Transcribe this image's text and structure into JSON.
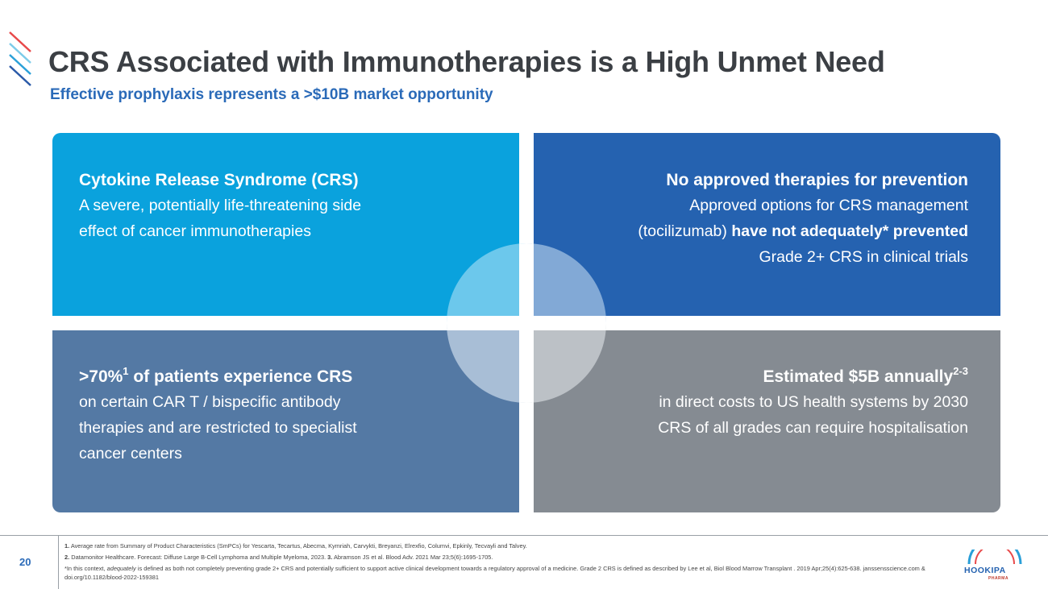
{
  "header": {
    "title": "CRS Associated with Immunotherapies is a High Unmet Need",
    "subtitle": "Effective prophylaxis represents a >$10B market opportunity"
  },
  "quadrants": {
    "top_left": {
      "heading": "Cytokine Release Syndrome (CRS)",
      "lines": [
        "A severe, potentially life-threatening side",
        "effect of cancer immunotherapies"
      ]
    },
    "top_right": {
      "heading": "No approved therapies for prevention",
      "line1": "Approved options for CRS management",
      "line2_prefix": "(tocilizumab) ",
      "line2_bold": "have not adequately* prevented",
      "line3": "Grade 2+ CRS in clinical trials"
    },
    "bottom_left": {
      "heading_main": ">70%",
      "heading_sup": "1",
      "heading_rest": " of patients experience CRS",
      "lines": [
        "on certain CAR T / bispecific antibody",
        "therapies and are restricted to specialist",
        "cancer centers"
      ]
    },
    "bottom_right": {
      "heading_main": "Estimated $5B annually",
      "heading_sup": "2-3",
      "lines": [
        "in direct costs to US health systems by 2030",
        "CRS of all grades can require hospitalisation"
      ]
    }
  },
  "footer": {
    "page_number": "20",
    "ref1_num": "1.",
    "ref1_text": " Average rate from Summary of Product Characteristics (SmPCs) for Yescarta, Tecartus, Abecma, Kymriah, Carvykti, Breyanzi, Elrexfio, Columvi, Epkinly, Tecvayli and Talvey.",
    "ref2_num": "2.",
    "ref2_text": " Datamonitor Healthcare. Forecast: Diffuse Large B-Cell Lymphoma and Multiple Myeloma, 2023. ",
    "ref3_num": "3.",
    "ref3_text": " Abramson JS et al. Blood Adv. 2021 Mar 23;5(6):1695-1705.",
    "note_prefix": "*In this context, ",
    "note_italic": "adequately",
    "note_text": " is defined as both not completely preventing grade 2+ CRS and  potentially sufficient to support active clinical development towards a regulatory approval of a medicine. Grade 2 CRS is defined as described by Lee et al, Biol Blood Marrow Transplant . 2019 Apr;25(4):625-638. janssensscience.com & doi.org/10.1182/blood-2022-159381"
  },
  "logo": {
    "name": "HOOKIPA",
    "sub": "PHARMA"
  },
  "colors": {
    "title": "#3b3f44",
    "accent_blue": "#2a6ab8",
    "quad_top_left": "#0aa2dd",
    "quad_top_right": "#2562b0",
    "quad_bottom_left": "#5479a4",
    "quad_bottom_right": "#858b92"
  }
}
